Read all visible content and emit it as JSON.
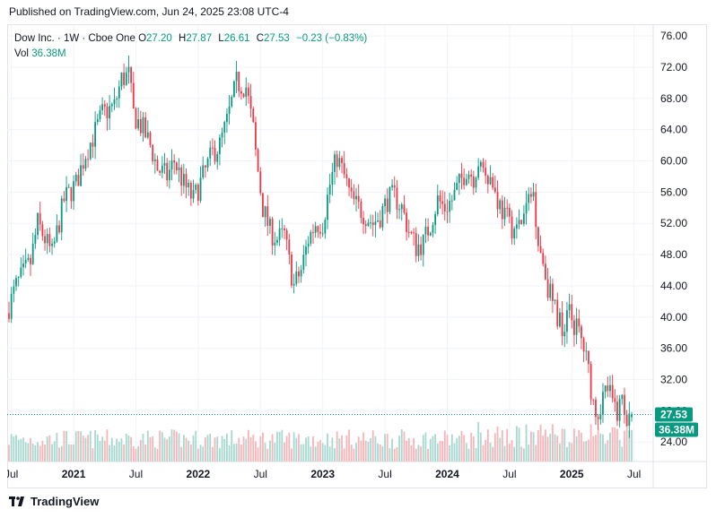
{
  "header": {
    "published": "Published on TradingView.com, Jun 24, 2025 23:08 UTC-4"
  },
  "legend": {
    "symbol": "Dow Inc. · 1W · Cboe One",
    "o_label": "O",
    "o_value": "27.20",
    "h_label": "H",
    "h_value": "27.87",
    "l_label": "L",
    "l_value": "26.61",
    "c_label": "C",
    "c_value": "27.53",
    "change": "−0.23 (−0.83%)",
    "vol_label": "Vol",
    "vol_value": "36.38M"
  },
  "colors": {
    "up": "#089981",
    "down": "#f23645",
    "vol_up": "#a7d8cf",
    "vol_down": "#f7b5b9",
    "grid": "#f0f3fa",
    "axis_text": "#131722"
  },
  "footer": {
    "brand": "TradingView"
  },
  "chart_data": {
    "type": "candlestick",
    "title": "Dow Inc. · 1W · Cboe One",
    "ylim": [
      21.5,
      77.5
    ],
    "y_ticks": [
      "76.00",
      "72.00",
      "68.00",
      "64.00",
      "60.00",
      "56.00",
      "52.00",
      "48.00",
      "44.00",
      "40.00",
      "36.00",
      "32.00",
      "28.00",
      "24.00"
    ],
    "x_range_weeks": [
      0,
      260
    ],
    "x_ticks": [
      {
        "label": "Jul",
        "week": 1
      },
      {
        "label": "2021",
        "week": 27
      },
      {
        "label": "Jul",
        "week": 53
      },
      {
        "label": "2022",
        "week": 79
      },
      {
        "label": "Jul",
        "week": 105
      },
      {
        "label": "2023",
        "week": 131
      },
      {
        "label": "Jul",
        "week": 157
      },
      {
        "label": "2024",
        "week": 183
      },
      {
        "label": "Jul",
        "week": 209
      },
      {
        "label": "2025",
        "week": 235
      },
      {
        "label": "Jul",
        "week": 261
      }
    ],
    "price_path_anchors": [
      [
        0,
        40.5
      ],
      [
        4,
        44
      ],
      [
        10,
        47
      ],
      [
        13,
        52
      ],
      [
        19,
        48
      ],
      [
        24,
        55
      ],
      [
        29,
        57
      ],
      [
        33,
        61
      ],
      [
        36,
        63
      ],
      [
        40,
        66
      ],
      [
        45,
        67
      ],
      [
        48,
        70.5
      ],
      [
        51,
        71
      ],
      [
        53,
        66
      ],
      [
        57,
        64
      ],
      [
        60,
        62
      ],
      [
        63,
        59
      ],
      [
        67,
        58
      ],
      [
        70,
        60
      ],
      [
        74,
        57
      ],
      [
        78,
        55
      ],
      [
        82,
        58
      ],
      [
        86,
        61
      ],
      [
        89,
        62
      ],
      [
        92,
        65
      ],
      [
        96,
        70
      ],
      [
        100,
        69.5
      ],
      [
        103,
        64
      ],
      [
        104,
        61
      ],
      [
        107,
        54
      ],
      [
        110,
        51
      ],
      [
        113,
        50
      ],
      [
        116,
        50.5
      ],
      [
        118,
        47
      ],
      [
        120,
        44
      ],
      [
        123,
        46
      ],
      [
        126,
        50
      ],
      [
        129,
        52
      ],
      [
        132,
        52
      ],
      [
        135,
        57
      ],
      [
        138,
        60.5
      ],
      [
        141,
        58
      ],
      [
        144,
        55
      ],
      [
        147,
        54
      ],
      [
        150,
        53
      ],
      [
        153,
        52
      ],
      [
        156,
        53
      ],
      [
        159,
        55
      ],
      [
        162,
        55.5
      ],
      [
        165,
        54
      ],
      [
        168,
        51
      ],
      [
        171,
        49
      ],
      [
        174,
        49.5
      ],
      [
        177,
        52
      ],
      [
        180,
        55
      ],
      [
        183,
        54
      ],
      [
        186,
        55
      ],
      [
        189,
        57
      ],
      [
        192,
        59
      ],
      [
        195,
        58
      ],
      [
        197,
        60
      ],
      [
        200,
        59
      ],
      [
        203,
        57
      ],
      [
        205,
        55
      ],
      [
        208,
        53
      ],
      [
        210,
        52
      ],
      [
        213,
        51
      ],
      [
        216,
        53
      ],
      [
        218,
        55
      ],
      [
        220,
        56
      ],
      [
        222,
        50
      ],
      [
        224,
        47
      ],
      [
        226,
        44
      ],
      [
        228,
        42
      ],
      [
        230,
        40
      ],
      [
        232,
        39
      ],
      [
        235,
        40.5
      ],
      [
        237,
        39
      ],
      [
        239,
        38
      ],
      [
        241,
        36
      ],
      [
        243,
        33
      ],
      [
        245,
        29
      ],
      [
        247,
        28
      ],
      [
        249,
        30
      ],
      [
        251,
        31
      ],
      [
        253,
        29
      ],
      [
        255,
        28
      ],
      [
        257,
        29.5
      ],
      [
        259,
        27.5
      ]
    ],
    "last_bar": {
      "open": 27.2,
      "high": 27.87,
      "low": 26.61,
      "close": 27.53
    },
    "last_price": "27.53",
    "last_volume": "36.38M"
  }
}
